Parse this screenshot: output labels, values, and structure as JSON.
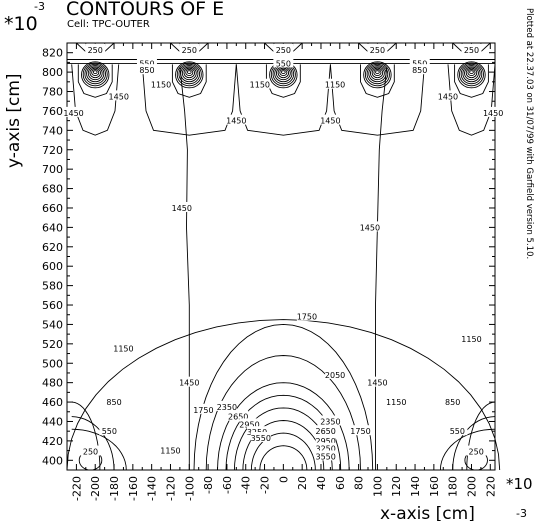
{
  "header": {
    "exponent_prefix": "*10",
    "exponent": "-3",
    "title": "CONTOURS OF E",
    "cell": "Cell: TPC-OUTER"
  },
  "side_note": "Plotted at 22.37.03 on 31/07/99 with Garfield version 5.10.",
  "chart_data": {
    "type": "contour",
    "title": "CONTOURS OF E",
    "xlabel": "x-axis [cm]",
    "ylabel": "y-axis [cm]",
    "x_scale_note": "*10 -3",
    "y_scale_note": "*10 -3",
    "xlim": [
      -230,
      225
    ],
    "ylim": [
      390,
      830
    ],
    "x_ticks": [
      -220,
      -200,
      -180,
      -160,
      -140,
      -120,
      -100,
      -80,
      -60,
      -40,
      -20,
      0,
      20,
      40,
      60,
      80,
      100,
      120,
      140,
      160,
      180,
      200,
      220
    ],
    "y_ticks": [
      400,
      420,
      440,
      460,
      480,
      500,
      520,
      540,
      560,
      580,
      600,
      620,
      640,
      660,
      680,
      700,
      720,
      740,
      760,
      780,
      800,
      820
    ],
    "contour_levels": [
      250,
      550,
      850,
      1150,
      1450,
      1750,
      2050,
      2350,
      2650,
      2950,
      3250,
      3550
    ],
    "wire_positions_x": [
      -200,
      -100,
      0,
      100,
      200
    ],
    "wire_plane_y": 800,
    "labels": [
      {
        "text": "250",
        "x": -200,
        "y": 823
      },
      {
        "text": "250",
        "x": -100,
        "y": 823
      },
      {
        "text": "250",
        "x": 0,
        "y": 823
      },
      {
        "text": "250",
        "x": 100,
        "y": 823
      },
      {
        "text": "250",
        "x": 200,
        "y": 823
      },
      {
        "text": "550",
        "x": -145,
        "y": 809
      },
      {
        "text": "550",
        "x": 0,
        "y": 809
      },
      {
        "text": "550",
        "x": 145,
        "y": 809
      },
      {
        "text": "850",
        "x": -145,
        "y": 802
      },
      {
        "text": "850",
        "x": 145,
        "y": 802
      },
      {
        "text": "1150",
        "x": -130,
        "y": 787
      },
      {
        "text": "1150",
        "x": -25,
        "y": 787
      },
      {
        "text": "1150",
        "x": 55,
        "y": 787
      },
      {
        "text": "1450",
        "x": -223,
        "y": 758
      },
      {
        "text": "1450",
        "x": 223,
        "y": 758
      },
      {
        "text": "1450",
        "x": -175,
        "y": 775
      },
      {
        "text": "1450",
        "x": 175,
        "y": 775
      },
      {
        "text": "1450",
        "x": -50,
        "y": 750
      },
      {
        "text": "1450",
        "x": 50,
        "y": 750
      },
      {
        "text": "1450",
        "x": -108,
        "y": 660
      },
      {
        "text": "1450",
        "x": 92,
        "y": 640
      },
      {
        "text": "1450",
        "x": -100,
        "y": 480
      },
      {
        "text": "1450",
        "x": 100,
        "y": 480
      },
      {
        "text": "1750",
        "x": 25,
        "y": 548
      },
      {
        "text": "1750",
        "x": -85,
        "y": 452
      },
      {
        "text": "1750",
        "x": 82,
        "y": 430
      },
      {
        "text": "1150",
        "x": -170,
        "y": 515
      },
      {
        "text": "1150",
        "x": 200,
        "y": 525
      },
      {
        "text": "1150",
        "x": -120,
        "y": 410
      },
      {
        "text": "1150",
        "x": 120,
        "y": 460
      },
      {
        "text": "850",
        "x": -180,
        "y": 460
      },
      {
        "text": "850",
        "x": 180,
        "y": 460
      },
      {
        "text": "550",
        "x": -185,
        "y": 430
      },
      {
        "text": "550",
        "x": 185,
        "y": 430
      },
      {
        "text": "250",
        "x": -205,
        "y": 409
      },
      {
        "text": "250",
        "x": 205,
        "y": 409
      },
      {
        "text": "2050",
        "x": 55,
        "y": 488
      },
      {
        "text": "2350",
        "x": -60,
        "y": 455
      },
      {
        "text": "2650",
        "x": -48,
        "y": 445
      },
      {
        "text": "2950",
        "x": -36,
        "y": 437
      },
      {
        "text": "3250",
        "x": -28,
        "y": 429
      },
      {
        "text": "3550",
        "x": -24,
        "y": 423
      },
      {
        "text": "2350",
        "x": 50,
        "y": 440
      },
      {
        "text": "2650",
        "x": 45,
        "y": 430
      },
      {
        "text": "2950",
        "x": 45,
        "y": 420
      },
      {
        "text": "3250",
        "x": 45,
        "y": 412
      },
      {
        "text": "3550",
        "x": 45,
        "y": 404
      }
    ]
  }
}
